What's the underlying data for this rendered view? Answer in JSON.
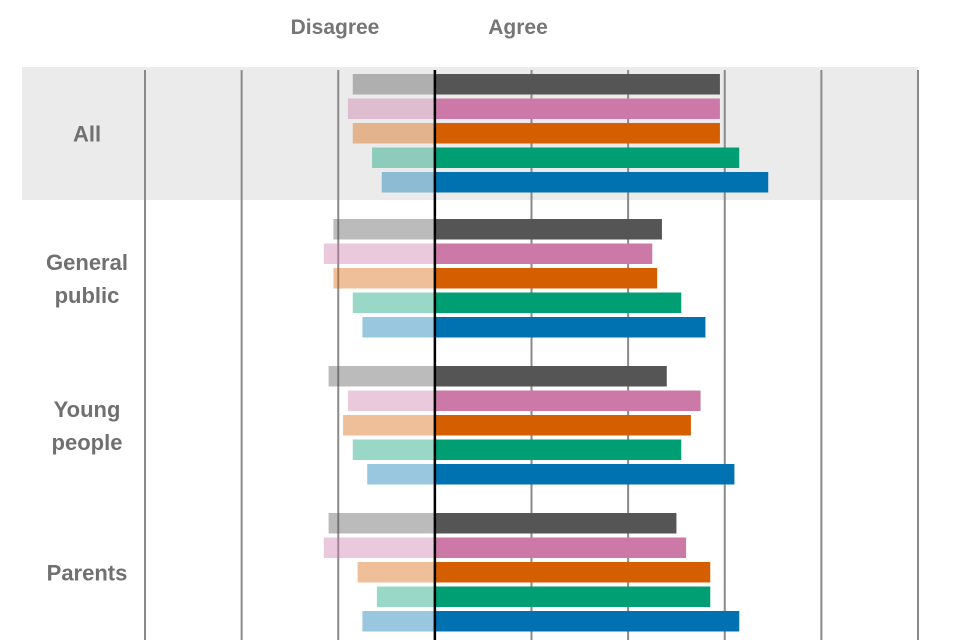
{
  "chart_data": {
    "type": "bar",
    "orientation": "horizontal-diverging",
    "title": "",
    "headers": {
      "negative": "Disagree",
      "positive": "Agree"
    },
    "xlim": [
      -30,
      50
    ],
    "grid": true,
    "gridline_step": 10,
    "legend": "none",
    "categories": [
      "All",
      "General public",
      "Young people",
      "Parents"
    ],
    "category_label_lines": [
      [
        "All"
      ],
      [
        "General",
        "public"
      ],
      [
        "Young",
        "people"
      ],
      [
        "Parents"
      ]
    ],
    "highlighted_category": "All",
    "series_colors": [
      "#555555",
      "#cc79a7",
      "#d55e00",
      "#009e73",
      "#0072b2"
    ],
    "disagree_opacity": 0.4,
    "highlight_band_color": "#ebebeb",
    "series": [
      {
        "disagree": [
          8.5,
          10.5,
          11.0,
          11.0
        ],
        "agree": [
          29.5,
          23.5,
          24.0,
          25.0
        ]
      },
      {
        "disagree": [
          9.0,
          11.5,
          9.0,
          11.5
        ],
        "agree": [
          29.5,
          22.5,
          27.5,
          26.0
        ]
      },
      {
        "disagree": [
          8.5,
          10.5,
          9.5,
          8.0
        ],
        "agree": [
          29.5,
          23.0,
          26.5,
          28.5
        ]
      },
      {
        "disagree": [
          6.5,
          8.5,
          8.5,
          6.0
        ],
        "agree": [
          31.5,
          25.5,
          25.5,
          28.5
        ]
      },
      {
        "disagree": [
          5.5,
          7.5,
          7.0,
          7.5
        ],
        "agree": [
          34.5,
          28.0,
          31.0,
          31.5
        ]
      }
    ]
  }
}
